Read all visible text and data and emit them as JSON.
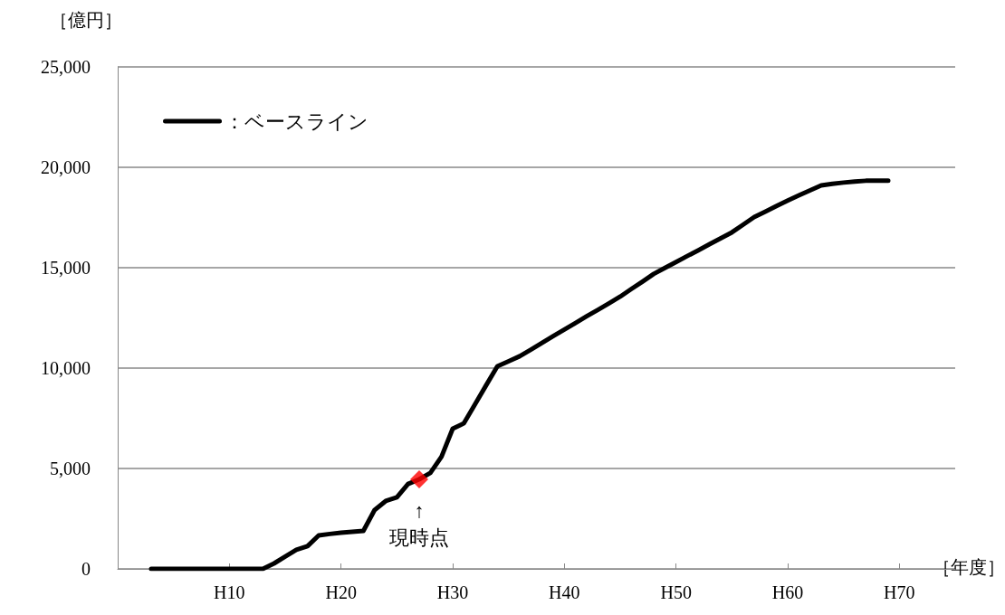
{
  "chart_data": {
    "type": "line",
    "ylabel": "［億円］",
    "xlabel": "［年度］",
    "categories": [
      null,
      null,
      null,
      null,
      null,
      null,
      null,
      null,
      null,
      null,
      "H10",
      null,
      null,
      null,
      null,
      null,
      null,
      null,
      null,
      null,
      "H20",
      null,
      null,
      null,
      null,
      null,
      null,
      null,
      null,
      null,
      "H30",
      null,
      null,
      null,
      null,
      null,
      null,
      null,
      null,
      null,
      "H40",
      null,
      null,
      null,
      null,
      null,
      null,
      null,
      null,
      null,
      "H50",
      null,
      null,
      null,
      null,
      null,
      null,
      null,
      null,
      null,
      "H60",
      null,
      null,
      null,
      null,
      null,
      null,
      null,
      null,
      null,
      "H70",
      null,
      null,
      null,
      null,
      null
    ],
    "ylim": [
      0,
      25000
    ],
    "yticks": [
      {
        "value": 0,
        "label": "0"
      },
      {
        "value": 5000,
        "label": "5,000"
      },
      {
        "value": 10000,
        "label": "10,000"
      },
      {
        "value": 15000,
        "label": "15,000"
      },
      {
        "value": 20000,
        "label": "20,000"
      },
      {
        "value": 25000,
        "label": "25,000"
      }
    ],
    "grid": "y",
    "legend": "top left",
    "series": [
      {
        "name": "：ベースライン",
        "color": "#000000",
        "marker": "none",
        "values": [
          null,
          null,
          null,
          0,
          0,
          0,
          0,
          0,
          0,
          0,
          0,
          0,
          0,
          0,
          270,
          610,
          950,
          1130,
          1670,
          1740,
          1800,
          1850,
          1890,
          2930,
          3380,
          3560,
          4230,
          4460,
          4780,
          5590,
          6980,
          7250,
          8200,
          9150,
          10090,
          10340,
          10590,
          10920,
          11260,
          11590,
          11920,
          12250,
          12580,
          12900,
          13230,
          13560,
          13940,
          14310,
          14690,
          14990,
          15280,
          15580,
          15870,
          16170,
          16460,
          16760,
          17140,
          17520,
          17790,
          18070,
          18340,
          18600,
          18850,
          19100,
          19180,
          19240,
          19290,
          19330,
          19330,
          19330,
          null,
          null,
          null,
          null,
          null,
          null
        ]
      },
      {
        "type": "scatter",
        "color": "#ff0000",
        "marker": "diamond",
        "values": [
          null,
          null,
          null,
          null,
          null,
          null,
          null,
          null,
          null,
          null,
          null,
          null,
          null,
          null,
          null,
          null,
          null,
          null,
          null,
          null,
          null,
          null,
          null,
          null,
          null,
          null,
          null,
          4460,
          null,
          null,
          null,
          null,
          null,
          null,
          null,
          null,
          null,
          null,
          null,
          null,
          null,
          null,
          null,
          null,
          null,
          null,
          null,
          null,
          null,
          null,
          null,
          null,
          null,
          null,
          null,
          null,
          null,
          null,
          null,
          null,
          null,
          null,
          null,
          null,
          null,
          null,
          null,
          null,
          null,
          null,
          null,
          null,
          null,
          null,
          null,
          null
        ]
      }
    ],
    "annotations": [
      {
        "text": "↑\n現時点",
        "y": 4460
      }
    ]
  }
}
